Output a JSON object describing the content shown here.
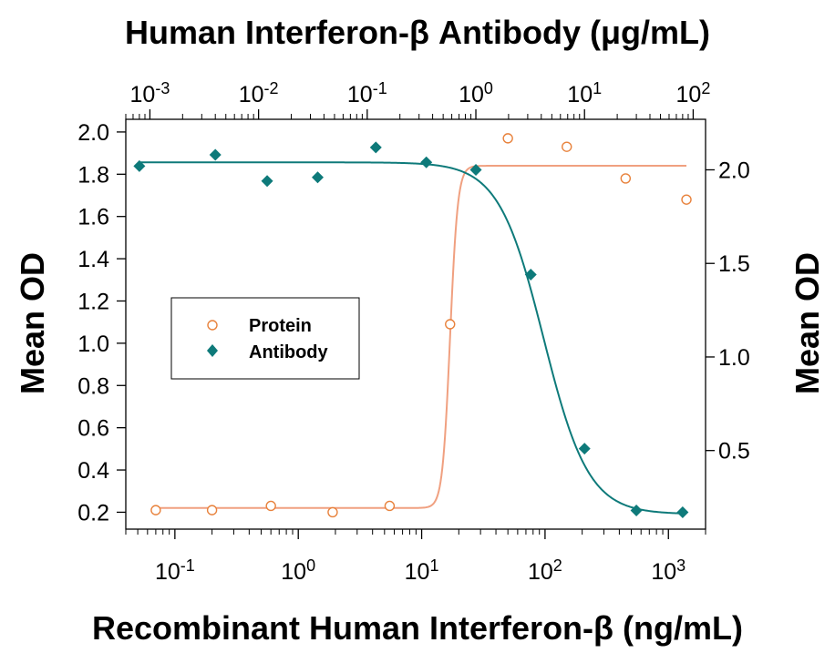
{
  "chart_data": {
    "type": "scatter",
    "title": "Human Interferon-β Antibody (μg/mL)",
    "xlabel": "Recombinant Human Interferon-β (ng/mL)",
    "ylabel_left": "Mean OD",
    "ylabel_right": "Mean OD",
    "x_scale": "log",
    "x_bottom": {
      "range": [
        0.04,
        2000
      ],
      "ticks": [
        {
          "value": 0.1,
          "base": "10",
          "exp": "-1"
        },
        {
          "value": 1,
          "base": "10",
          "exp": "0"
        },
        {
          "value": 10,
          "base": "10",
          "exp": "1"
        },
        {
          "value": 100,
          "base": "10",
          "exp": "2"
        },
        {
          "value": 1000,
          "base": "10",
          "exp": "3"
        }
      ]
    },
    "x_top": {
      "range": [
        0.0006,
        130
      ],
      "ticks": [
        {
          "value": 0.001,
          "base": "10",
          "exp": "-3"
        },
        {
          "value": 0.01,
          "base": "10",
          "exp": "-2"
        },
        {
          "value": 0.1,
          "base": "10",
          "exp": "-1"
        },
        {
          "value": 1,
          "base": "10",
          "exp": "0"
        },
        {
          "value": 10,
          "base": "10",
          "exp": "1"
        },
        {
          "value": 100,
          "base": "10",
          "exp": "2"
        }
      ]
    },
    "y_left": {
      "range": [
        0.12,
        2.06
      ],
      "ticks": [
        "2.0",
        "1.8",
        "1.6",
        "1.4",
        "1.2",
        "1.0",
        "0.8",
        "0.6",
        "0.4",
        "0.2"
      ]
    },
    "y_right": {
      "range": [
        0.08,
        2.27
      ],
      "ticks": [
        "2.0",
        "1.5",
        "1.0",
        "0.5"
      ]
    },
    "legend": {
      "position": "center-left",
      "entries": [
        "Protein",
        "Antibody"
      ]
    },
    "grid": false,
    "series": [
      {
        "name": "Protein",
        "axis": "bottom-left",
        "color": "#e8823c",
        "marker": "open-circle",
        "points": [
          {
            "x": 0.07,
            "y": 0.21
          },
          {
            "x": 0.2,
            "y": 0.21
          },
          {
            "x": 0.6,
            "y": 0.23
          },
          {
            "x": 1.9,
            "y": 0.2
          },
          {
            "x": 5.5,
            "y": 0.23
          },
          {
            "x": 17,
            "y": 1.09
          },
          {
            "x": 50,
            "y": 1.97
          },
          {
            "x": 150,
            "y": 1.93
          },
          {
            "x": 450,
            "y": 1.78
          },
          {
            "x": 1400,
            "y": 1.68
          }
        ],
        "fit": {
          "bottom": 0.22,
          "top": 1.84,
          "ec50": 17,
          "hill": 14
        }
      },
      {
        "name": "Antibody",
        "axis": "top-right",
        "color": "#0e7a7a",
        "marker": "filled-diamond",
        "points": [
          {
            "x": 0.0008,
            "y": 2.02
          },
          {
            "x": 0.004,
            "y": 2.08
          },
          {
            "x": 0.012,
            "y": 1.94
          },
          {
            "x": 0.035,
            "y": 1.96
          },
          {
            "x": 0.12,
            "y": 2.12
          },
          {
            "x": 0.35,
            "y": 2.04
          },
          {
            "x": 1.0,
            "y": 2.0
          },
          {
            "x": 3.2,
            "y": 1.44
          },
          {
            "x": 10,
            "y": 0.51
          },
          {
            "x": 30,
            "y": 0.18
          },
          {
            "x": 80,
            "y": 0.17
          }
        ],
        "fit": {
          "bottom": 0.16,
          "top": 2.04,
          "ec50": 4.2,
          "hill": 2.1
        }
      }
    ]
  }
}
